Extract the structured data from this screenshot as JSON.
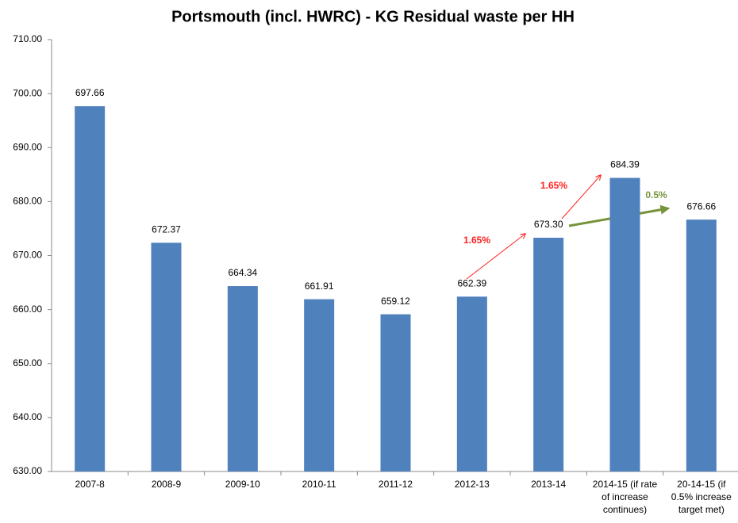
{
  "chart_data": {
    "type": "bar",
    "title": "Portsmouth (incl. HWRC) - KG Residual waste per HH",
    "categories": [
      "2007-8",
      "2008-9",
      "2009-10",
      "2010-11",
      "2011-12",
      "2012-13",
      "2013-14",
      "2014-15 (if rate of increase continues)",
      "20-14-15 (if 0.5% increase target met)"
    ],
    "values": [
      697.66,
      672.37,
      664.34,
      661.91,
      659.12,
      662.39,
      673.3,
      684.39,
      676.66
    ],
    "value_labels": [
      "697.66",
      "672.37",
      "664.34",
      "661.91",
      "659.12",
      "662.39",
      "673.30",
      "684.39",
      "676.66"
    ],
    "color": "#4f81bd",
    "ylim": [
      630,
      710
    ],
    "yticks": [
      {
        "value": 630,
        "label": "630.00"
      },
      {
        "value": 640,
        "label": "640.00"
      },
      {
        "value": 650,
        "label": "650.00"
      },
      {
        "value": 660,
        "label": "660.00"
      },
      {
        "value": 670,
        "label": "670.00"
      },
      {
        "value": 680,
        "label": "680.00"
      },
      {
        "value": 690,
        "label": "690.00"
      },
      {
        "value": 700,
        "label": "700.00"
      },
      {
        "value": 710,
        "label": "710.00"
      }
    ],
    "grid": false,
    "annotations": [
      "1.65%",
      "1.65%",
      "0.5%"
    ]
  }
}
